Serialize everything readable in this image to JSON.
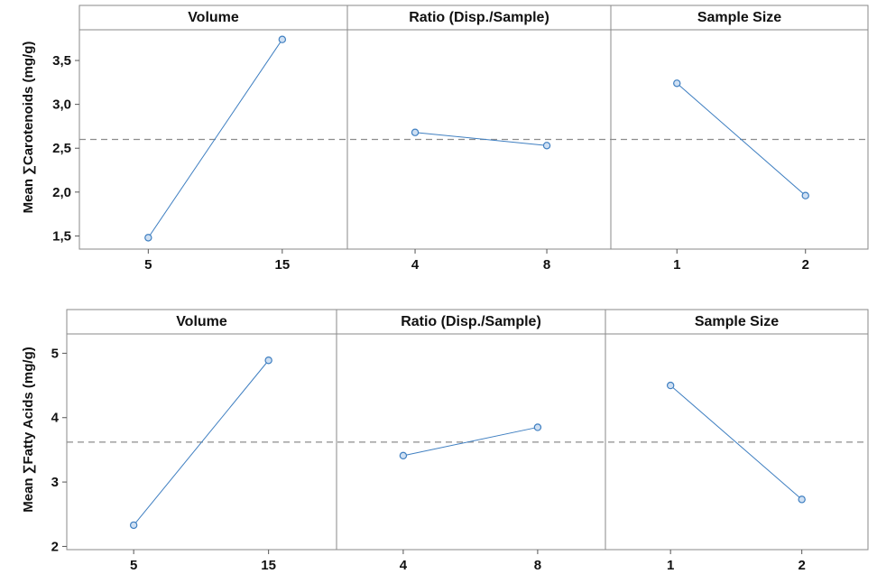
{
  "colors": {
    "series": "#3f7fc1",
    "point_fill": "#cfe0f3",
    "reference": "#8c8c8c"
  },
  "chart_data": [
    {
      "type": "line",
      "title": "",
      "ylabel": "Mean ∑Carotenoids (mg/g)",
      "ylim": [
        1.35,
        3.85
      ],
      "yticks": [
        "1,5",
        "2,0",
        "2,5",
        "3,0",
        "3,5"
      ],
      "ytick_values": [
        1.5,
        2.0,
        2.5,
        3.0,
        3.5
      ],
      "reference_line": 2.6,
      "panels": [
        {
          "title": "Volume",
          "categories": [
            "5",
            "15"
          ],
          "values": [
            1.48,
            3.74
          ]
        },
        {
          "title": "Ratio (Disp./Sample)",
          "categories": [
            "4",
            "8"
          ],
          "values": [
            2.68,
            2.53
          ]
        },
        {
          "title": "Sample Size",
          "categories": [
            "1",
            "2"
          ],
          "values": [
            3.24,
            1.96
          ]
        }
      ]
    },
    {
      "type": "line",
      "title": "",
      "ylabel": "Mean ∑Fatty Acids (mg/g)",
      "ylim": [
        1.95,
        5.3
      ],
      "yticks": [
        "2",
        "3",
        "4",
        "5"
      ],
      "ytick_values": [
        2,
        3,
        4,
        5
      ],
      "reference_line": 3.62,
      "panels": [
        {
          "title": "Volume",
          "categories": [
            "5",
            "15"
          ],
          "values": [
            2.33,
            4.89
          ]
        },
        {
          "title": "Ratio (Disp./Sample)",
          "categories": [
            "4",
            "8"
          ],
          "values": [
            3.41,
            3.85
          ]
        },
        {
          "title": "Sample Size",
          "categories": [
            "1",
            "2"
          ],
          "values": [
            4.5,
            2.73
          ]
        }
      ]
    }
  ]
}
